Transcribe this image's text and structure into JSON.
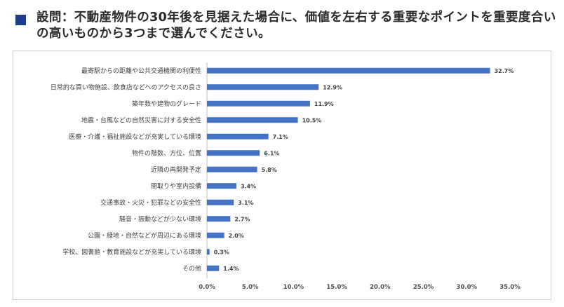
{
  "question": {
    "text": "設問：不動産物件の30年後を見据えた場合に、価値を左右する重要なポイントを重要度合いの高いものから3つまで選んでください。"
  },
  "colors": {
    "bar": "#4472c4",
    "marker": "#1f3d8f",
    "axis": "#bfbfbf",
    "text": "#404040"
  },
  "chart_data": {
    "type": "bar",
    "orientation": "horizontal",
    "title": "",
    "xlabel": "",
    "ylabel": "",
    "categories": [
      "最寄駅からの距離や公共交通機関の利便性",
      "日常的な買い物施設、飲食店などへのアクセスの良さ",
      "築年数や建物のグレード",
      "地震・台風などの自然災害に対する安全性",
      "医療・介護・福祉施設などが充実している環境",
      "物件の階数、方位、位置",
      "近隣の再開発予定",
      "間取りや室内設備",
      "交通事故・火災・犯罪などの安全性",
      "騒音・振動などが少ない環境",
      "公園・緑地・自然などが周辺にある環境",
      "学校、図書館・教育施設などが充実している環境",
      "その他"
    ],
    "values": [
      32.7,
      12.9,
      11.9,
      10.5,
      7.1,
      6.1,
      5.8,
      3.4,
      3.1,
      2.7,
      2.0,
      0.3,
      1.4
    ],
    "value_labels": [
      "32.7%",
      "12.9%",
      "11.9%",
      "10.5%",
      "7.1%",
      "6.1%",
      "5.8%",
      "3.4%",
      "3.1%",
      "2.7%",
      "2.0%",
      "0.3%",
      "1.4%"
    ],
    "xlim": [
      0,
      35
    ],
    "xticks": [
      "0.0%",
      "5.0%",
      "10.0%",
      "15.0%",
      "20.0%",
      "25.0%",
      "30.0%",
      "35.0%"
    ],
    "grid": false,
    "legend": "none"
  }
}
